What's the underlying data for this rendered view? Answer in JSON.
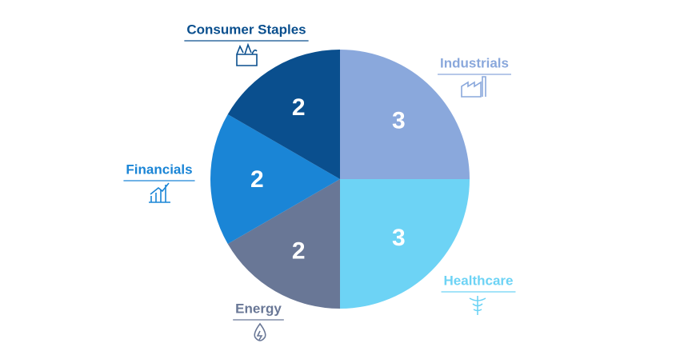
{
  "chart_data": {
    "type": "pie",
    "categories": [
      "Industrials",
      "Healthcare",
      "Energy",
      "Financials",
      "Consumer Staples"
    ],
    "values": [
      3,
      3,
      2,
      2,
      2
    ],
    "colors": [
      "#8aa8dc",
      "#6dd3f5",
      "#697796",
      "#1a85d6",
      "#0a4f8e"
    ]
  }
}
